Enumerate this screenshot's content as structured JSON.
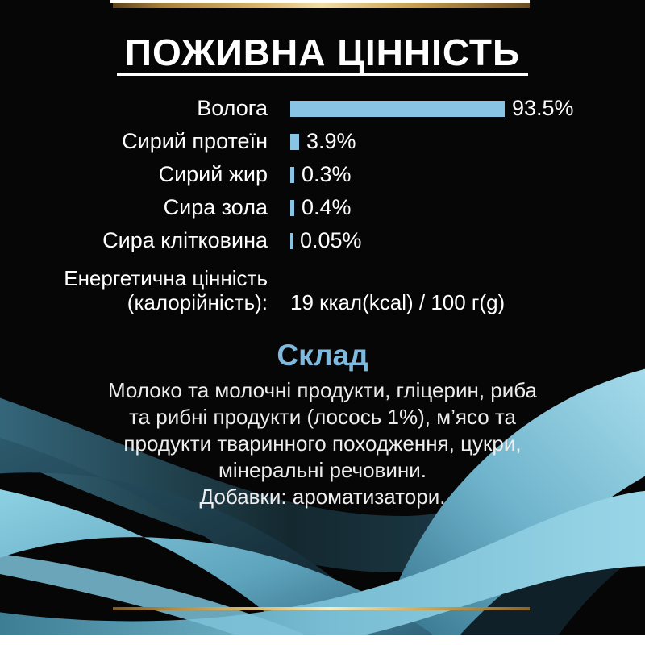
{
  "header": {
    "title": "ПОЖИВНА ЦІННІСТЬ"
  },
  "accents": {
    "bar_blue": "#8AC4E5",
    "heading_blue": "#7FB9DE",
    "gold": "#D9B368",
    "wave_teal_light": "#9AD6E8",
    "wave_teal_dark": "#17303C",
    "background": "#060607"
  },
  "chart_data": {
    "type": "bar",
    "orientation": "horizontal",
    "title": "ПОЖИВНА ЦІННІСТЬ",
    "categories": [
      "Волога",
      "Сирий протеїн",
      "Сирий жир",
      "Сира зола",
      "Сира клітковина"
    ],
    "values": [
      93.5,
      3.9,
      0.3,
      0.4,
      0.05
    ],
    "value_labels": [
      "93.5%",
      "3.9%",
      "0.3%",
      "0.4%",
      "0.05%"
    ],
    "unit": "%",
    "xlim": [
      0,
      100
    ],
    "bar_color": "#8AC4E5",
    "grid": false,
    "legend": false
  },
  "energy": {
    "label_line1": "Енергетична цінність",
    "label_line2": "(калорійність):",
    "value": "19 ккал(kcal) / 100 г(g)"
  },
  "composition": {
    "heading": "Склад",
    "lines": [
      "Молоко та молочні продукти, гліцерин, риба",
      "та рибні продукти (лосось 1%), м’ясо та",
      "продукти тваринного походження, цукри,",
      "мінеральні речовини.",
      "Добавки: ароматизатори."
    ]
  }
}
